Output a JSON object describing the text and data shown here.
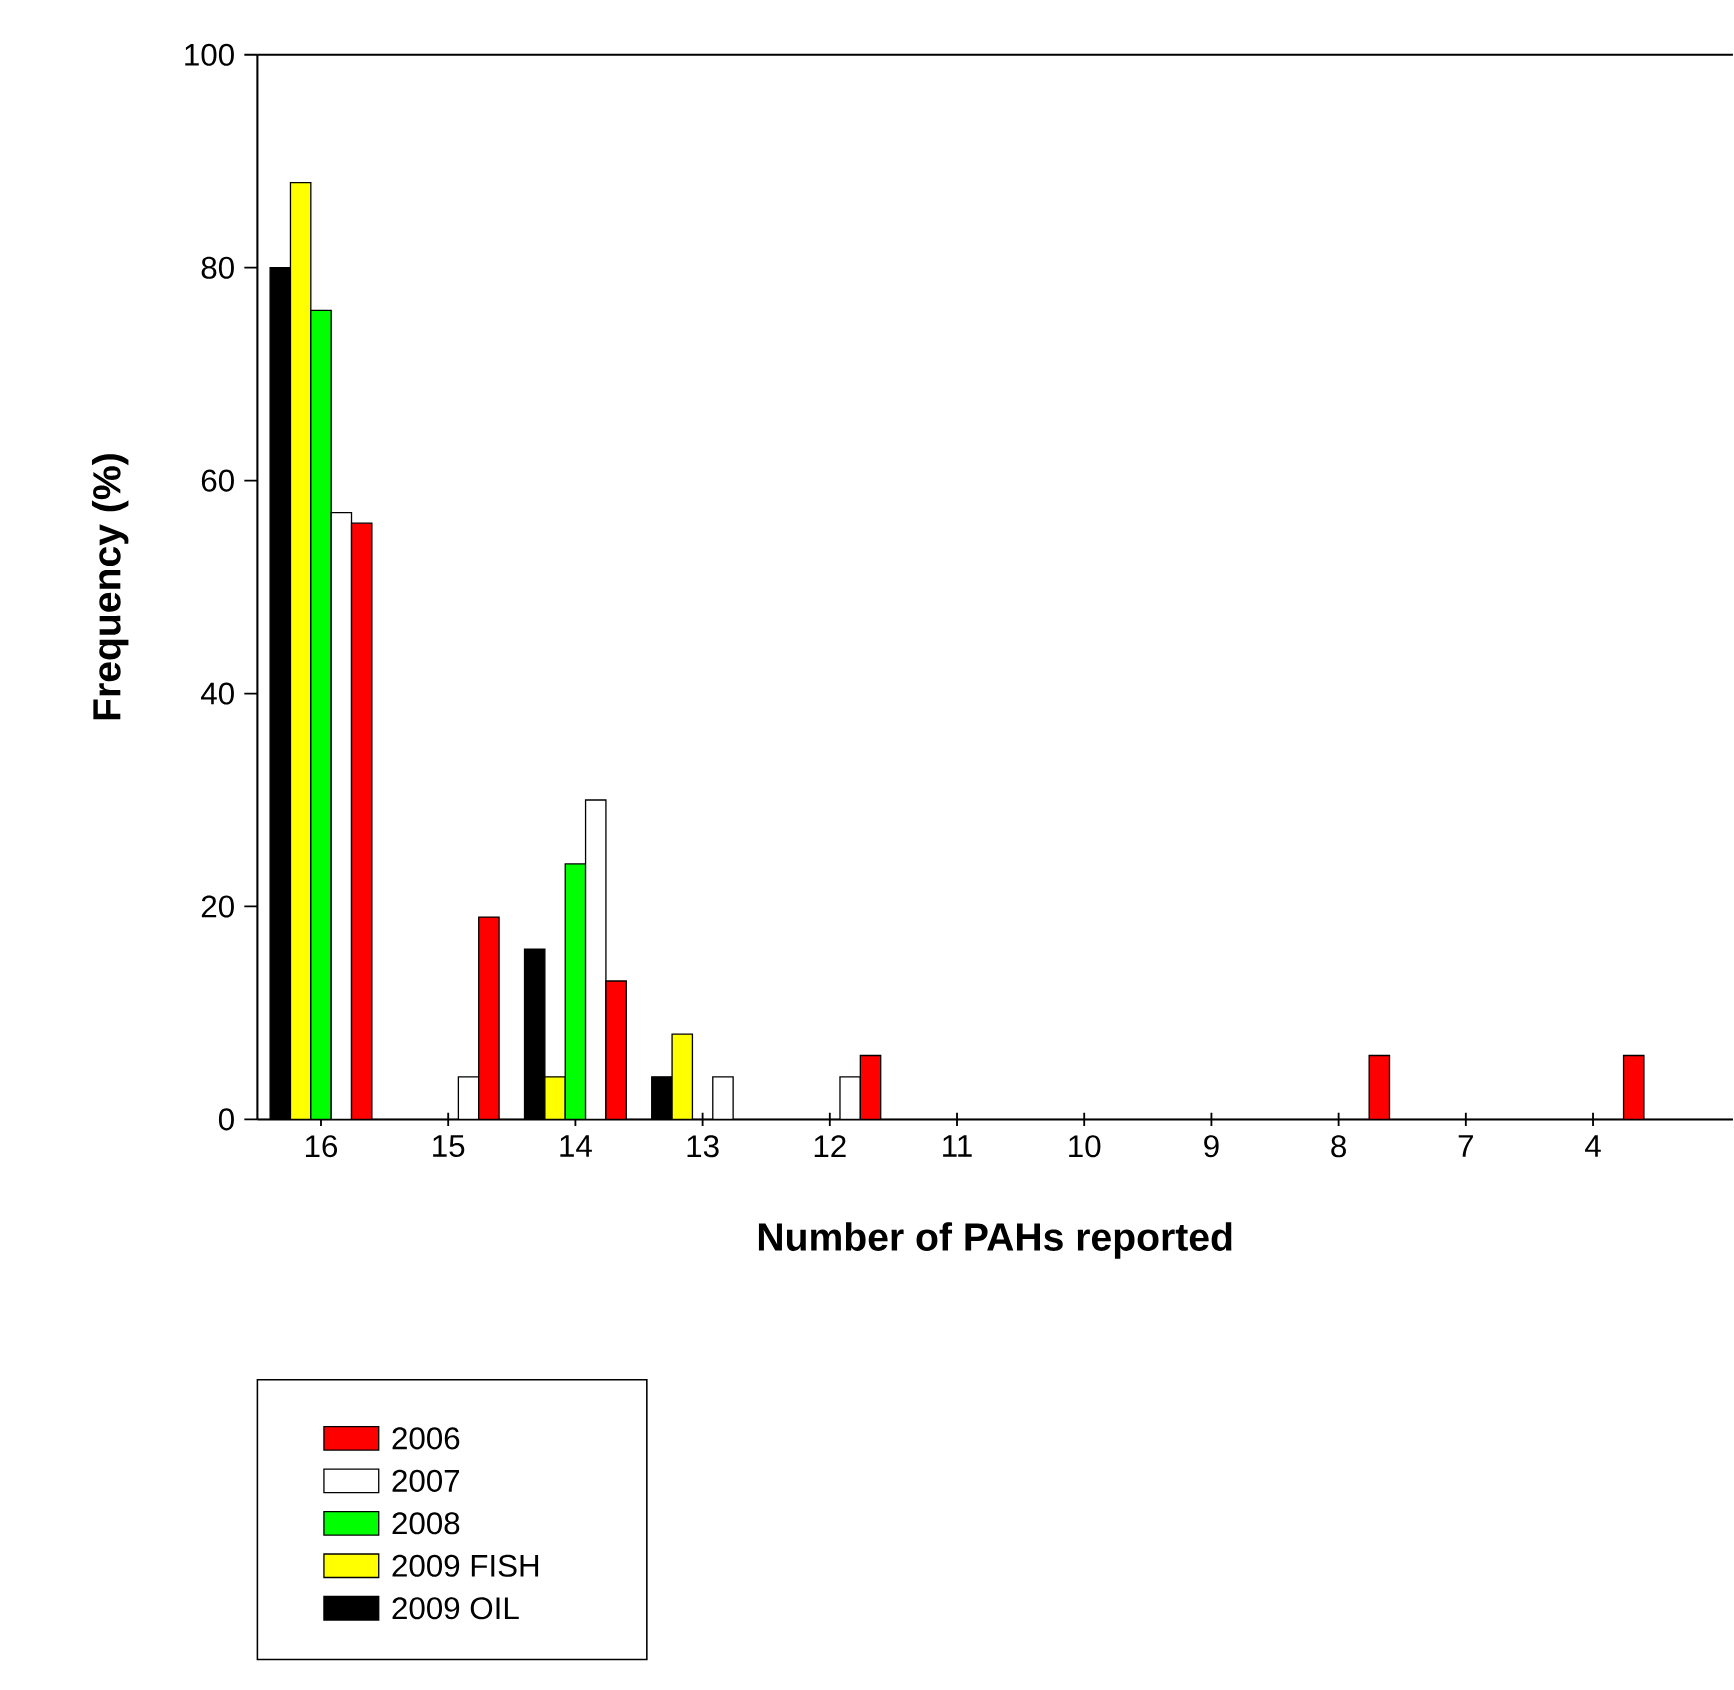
{
  "chart_data": {
    "type": "bar",
    "xlabel": "Number of PAHs reported",
    "ylabel": "Frequency (%)",
    "categories": [
      "16",
      "15",
      "14",
      "13",
      "12",
      "11",
      "10",
      "9",
      "8",
      "7",
      "4"
    ],
    "series": [
      {
        "name": "2009 OIL",
        "color": "#000000",
        "values": [
          80,
          null,
          16,
          4,
          null,
          null,
          null,
          null,
          null,
          null,
          null
        ]
      },
      {
        "name": "2009 FISH",
        "color": "#ffff00",
        "values": [
          88,
          null,
          4,
          8,
          null,
          null,
          null,
          null,
          null,
          null,
          null
        ]
      },
      {
        "name": "2008",
        "color": "#00ff00",
        "values": [
          76,
          null,
          24,
          null,
          null,
          null,
          null,
          null,
          null,
          null,
          null
        ]
      },
      {
        "name": "2007",
        "color": "#ffffff",
        "values": [
          57,
          4,
          30,
          4,
          4,
          null,
          null,
          null,
          null,
          null,
          null
        ]
      },
      {
        "name": "2006",
        "color": "#ff0000",
        "values": [
          56,
          19,
          13,
          null,
          6,
          null,
          null,
          null,
          6,
          null,
          6
        ]
      }
    ],
    "ylim": [
      0,
      100
    ],
    "yticks": [
      0,
      20,
      40,
      60,
      80,
      100
    ],
    "legend": "bottom left"
  }
}
